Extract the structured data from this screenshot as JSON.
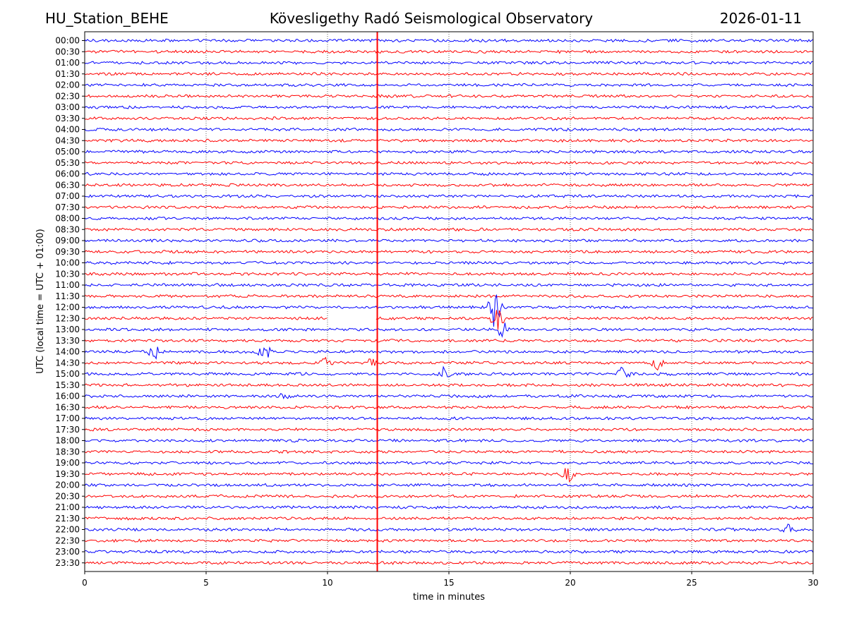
{
  "header": {
    "station": "HU_Station_BEHE",
    "observatory": "Kövesligethy Radó Seismological Observatory",
    "date": "2026-01-11"
  },
  "chart_data": {
    "type": "line",
    "title": "Kövesligethy Radó Seismological Observatory",
    "xlabel": "time in minutes",
    "ylabel": "UTC (local time = UTC + 01:00)",
    "xlim": [
      0,
      30
    ],
    "x_ticks": [
      0,
      5,
      10,
      15,
      20,
      25,
      30
    ],
    "grid": "vertical dotted",
    "trace_colors": [
      "#0000ff",
      "#ff0000"
    ],
    "rows": [
      "00:00",
      "00:30",
      "01:00",
      "01:30",
      "02:00",
      "02:30",
      "03:00",
      "03:30",
      "04:00",
      "04:30",
      "05:00",
      "05:30",
      "06:00",
      "06:30",
      "07:00",
      "07:30",
      "08:00",
      "08:30",
      "09:00",
      "09:30",
      "10:00",
      "10:30",
      "11:00",
      "11:30",
      "12:00",
      "12:30",
      "13:00",
      "13:30",
      "14:00",
      "14:30",
      "15:00",
      "15:30",
      "16:00",
      "16:30",
      "17:00",
      "17:30",
      "18:00",
      "18:30",
      "19:00",
      "19:30",
      "20:00",
      "20:30",
      "21:00",
      "21:30",
      "22:00",
      "22:30",
      "23:00",
      "23:30"
    ],
    "data_gap": {
      "row": "12:30",
      "from_min": 10.0,
      "to_min": 12.0
    },
    "persistent_signal_minute": 12.05,
    "events": [
      {
        "row": "12:00",
        "minute": 16.9,
        "amplitude": 2.2
      },
      {
        "row": "12:30",
        "minute": 17.0,
        "amplitude": 1.0
      },
      {
        "row": "13:00",
        "minute": 17.2,
        "amplitude": 0.8
      },
      {
        "row": "14:00",
        "minute": 2.9,
        "amplitude": 0.7
      },
      {
        "row": "14:00",
        "minute": 7.4,
        "amplitude": 0.8
      },
      {
        "row": "14:30",
        "minute": 10.0,
        "amplitude": 0.6
      },
      {
        "row": "14:30",
        "minute": 11.9,
        "amplitude": 0.6
      },
      {
        "row": "14:30",
        "minute": 23.6,
        "amplitude": 0.6
      },
      {
        "row": "15:00",
        "minute": 14.8,
        "amplitude": 0.7
      },
      {
        "row": "15:00",
        "minute": 22.2,
        "amplitude": 0.7
      },
      {
        "row": "16:00",
        "minute": 8.2,
        "amplitude": 0.5
      },
      {
        "row": "19:30",
        "minute": 19.9,
        "amplitude": 0.9
      },
      {
        "row": "22:00",
        "minute": 29.0,
        "amplitude": 0.5
      }
    ]
  }
}
